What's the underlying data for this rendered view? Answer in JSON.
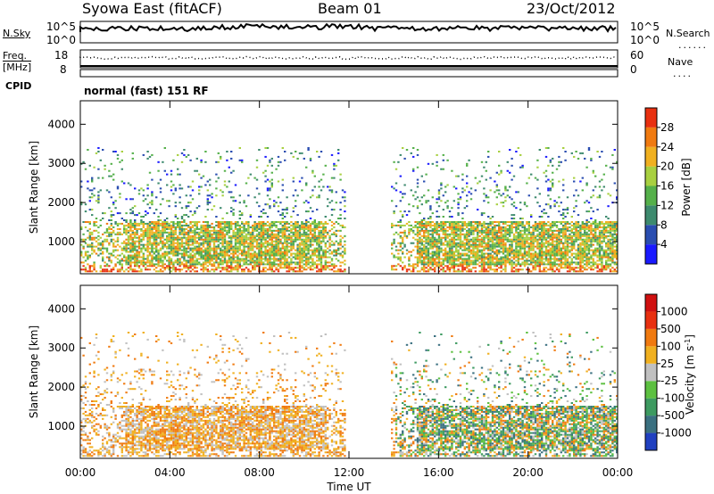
{
  "header": {
    "title": "Syowa East (fitACF)",
    "beam": "Beam 01",
    "date": "23/Oct/2012"
  },
  "aux_panels": {
    "nsky_label": "N.Sky",
    "nsky_ticks": [
      "10^5",
      "10^0"
    ],
    "nsearch_label": "N.Search",
    "nsearch_ticks": [
      "10^5",
      "10^0"
    ],
    "freq_label": "Freq.",
    "freq_unit": "[MHz]",
    "freq_ticks": [
      "18",
      "8"
    ],
    "nave_label": "Nave",
    "nave_ticks": [
      "60",
      "0"
    ],
    "cpid_label": "CPID",
    "cpid_value": "normal (fast) 151 RF"
  },
  "chart_data": [
    {
      "type": "heatmap",
      "quantity": "power",
      "ylabel": "Slant Range [km]",
      "y_ticks": [
        1000,
        2000,
        3000,
        4000
      ],
      "ylim": [
        180,
        4600
      ],
      "x_ticks": [
        "00:00",
        "04:00",
        "08:00",
        "12:00",
        "16:00",
        "20:00",
        "00:00"
      ],
      "xlim_hours": [
        0,
        24
      ],
      "colorbar": {
        "label": "Power [dB]",
        "ticks": [
          4,
          8,
          12,
          16,
          20,
          24,
          28
        ],
        "range": [
          0,
          32
        ],
        "colors": [
          "#1a1aff",
          "#2a4db0",
          "#3d8a6e",
          "#55b04a",
          "#a8d040",
          "#f0b020",
          "#f07a10",
          "#e83010"
        ]
      },
      "echo_regions": [
        {
          "t_start": 0.0,
          "t_end": 11.8,
          "r_start": 200,
          "r_end": 3400
        },
        {
          "t_start": 13.8,
          "t_end": 24.0,
          "r_start": 200,
          "r_end": 3400
        }
      ],
      "data_gap_hours": [
        11.8,
        13.8
      ]
    },
    {
      "type": "heatmap",
      "quantity": "velocity",
      "ylabel": "Slant Range [km]",
      "y_ticks": [
        1000,
        2000,
        3000,
        4000
      ],
      "ylim": [
        180,
        4600
      ],
      "x_ticks": [
        "00:00",
        "04:00",
        "08:00",
        "12:00",
        "16:00",
        "20:00",
        "00:00"
      ],
      "xlabel": "Time UT",
      "xlim_hours": [
        0,
        24
      ],
      "colorbar": {
        "label": "Velocity [m s",
        "label_sup": "-1",
        "label_end": "]",
        "ticks": [
          "1000",
          "500",
          "100",
          "25",
          "-25",
          "-100",
          "-500",
          "-1000"
        ],
        "colors": [
          "#2040c0",
          "#3a7080",
          "#3d9a60",
          "#5cc040",
          "#c0c0c0",
          "#f0b020",
          "#f07a10",
          "#e83010",
          "#d01010"
        ]
      },
      "echo_regions": [
        {
          "t_start": 0.0,
          "t_end": 11.8,
          "r_start": 200,
          "r_end": 3400
        },
        {
          "t_start": 13.8,
          "t_end": 24.0,
          "r_start": 200,
          "r_end": 3400
        }
      ],
      "data_gap_hours": [
        11.8,
        13.8
      ]
    }
  ]
}
